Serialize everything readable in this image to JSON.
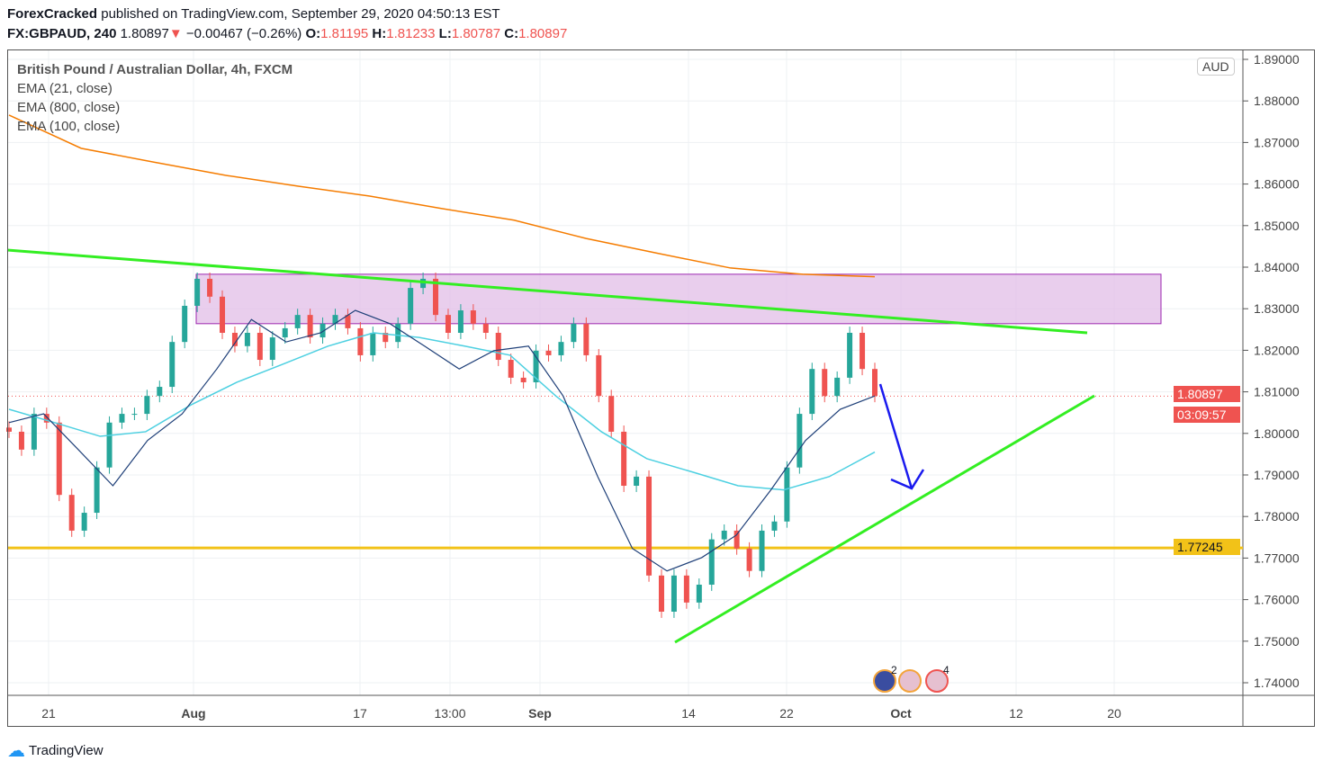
{
  "header": {
    "author": "ForexCracked",
    "published": "published on TradingView.com, September 29, 2020 04:50:13 EST",
    "symbol": "FX:GBPAUD, 240",
    "last": "1.80897",
    "change": "−0.00467 (−0.26%)",
    "o_label": "O:",
    "o": "1.81195",
    "h_label": "H:",
    "h": "1.81233",
    "l_label": "L:",
    "l": "1.80787",
    "c_label": "C:",
    "c": "1.80897"
  },
  "legend": {
    "title": "British Pound / Australian Dollar, 4h, FXCM",
    "ind1": "EMA (21, close)",
    "ind2": "EMA (800, close)",
    "ind3": "EMA (100, close)"
  },
  "currency": "AUD",
  "price_tag": "1.80897",
  "countdown": "03:09:57",
  "level_tag": "1.77245",
  "footer": {
    "brand": "TradingView"
  },
  "events": {
    "count_a": "2",
    "count_b": "4"
  },
  "colors": {
    "up": "#26a69a",
    "down": "#ef5350",
    "ema21": "#1e3f78",
    "ema800": "#f57c00",
    "ema100": "#4dd0e1",
    "trend": "#33ee22",
    "level": "#f2c218",
    "zone": "#e1bee7",
    "arrow": "#1a1aee"
  },
  "chart_data": {
    "type": "candlestick",
    "ylim": [
      1.74,
      1.89
    ],
    "yticks": [
      "1.89000",
      "1.88000",
      "1.87000",
      "1.86000",
      "1.85000",
      "1.84000",
      "1.83000",
      "1.82000",
      "1.81000",
      "1.80000",
      "1.79000",
      "1.78000",
      "1.77000",
      "1.76000",
      "1.75000",
      "1.74000"
    ],
    "xticks": [
      "21",
      "Aug",
      "17",
      "13:00",
      "Sep",
      "14",
      "22",
      "Oct",
      "12",
      "20"
    ],
    "closes": [
      1.8004,
      1.7961,
      1.8047,
      1.8026,
      1.7852,
      1.7766,
      1.7809,
      1.7918,
      1.8026,
      1.8047,
      1.8047,
      1.809,
      1.8112,
      1.822,
      1.8307,
      1.8372,
      1.8329,
      1.8242,
      1.821,
      1.8242,
      1.8177,
      1.8231,
      1.8253,
      1.8285,
      1.8231,
      1.8264,
      1.8285,
      1.8253,
      1.8188,
      1.8242,
      1.822,
      1.8264,
      1.835,
      1.8372,
      1.8285,
      1.8242,
      1.8296,
      1.8264,
      1.8242,
      1.8177,
      1.8134,
      1.8123,
      1.8199,
      1.8188,
      1.822,
      1.8264,
      1.8188,
      1.809,
      1.8004,
      1.7874,
      1.7896,
      1.7658,
      1.7571,
      1.7658,
      1.7593,
      1.7636,
      1.7745,
      1.7766,
      1.7723,
      1.7669,
      1.7766,
      1.7788,
      1.7918,
      1.8047,
      1.8155,
      1.809,
      1.8134,
      1.8242,
      1.8155,
      1.809
    ],
    "ema21": [
      1.8026,
      1.8047,
      1.7961,
      1.7874,
      1.7983,
      1.8047,
      1.8155,
      1.8274,
      1.822,
      1.8242,
      1.8296,
      1.8264,
      1.821,
      1.8155,
      1.8199,
      1.821,
      1.809,
      1.7896,
      1.7723,
      1.7669,
      1.7701,
      1.7755,
      1.7864,
      1.7983,
      1.8058,
      1.809
    ],
    "ema800": [
      1.8766,
      1.8686,
      1.8653,
      1.8621,
      1.8595,
      1.8571,
      1.8541,
      1.8513,
      1.8469,
      1.8433,
      1.8398,
      1.8383,
      1.8377
    ],
    "ema100": [
      1.8058,
      1.8026,
      1.7993,
      1.8004,
      1.8069,
      1.8123,
      1.8166,
      1.821,
      1.8242,
      1.8231,
      1.821,
      1.8188,
      1.809,
      1.8004,
      1.7939,
      1.7907,
      1.7874,
      1.7864,
      1.7896,
      1.7955
    ],
    "horizontal_level": 1.77245,
    "zone": [
      1.8264,
      1.8383
    ],
    "last_price": 1.80897
  }
}
